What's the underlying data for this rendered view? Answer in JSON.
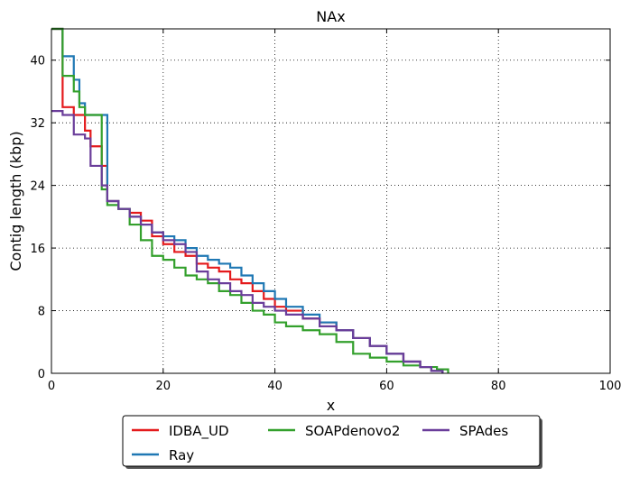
{
  "chart_data": {
    "type": "line",
    "title": "NAx",
    "xlabel": "x",
    "ylabel": "Contig length  (kbp)",
    "xlim": [
      0,
      100
    ],
    "ylim": [
      0,
      44
    ],
    "xticks": [
      0,
      20,
      40,
      60,
      80,
      100
    ],
    "yticks": [
      0,
      8,
      16,
      24,
      32,
      40
    ],
    "grid": true,
    "legend_position": "below-center",
    "series": [
      {
        "name": "IDBA_UD",
        "color": "#e41a1c",
        "step": true,
        "x": [
          0,
          2,
          4,
          6,
          7,
          9,
          10,
          12,
          14,
          16,
          18,
          20,
          22,
          24,
          26,
          28,
          30,
          32,
          34,
          36,
          38,
          40,
          42,
          45,
          48,
          51,
          54,
          57,
          60,
          63,
          66,
          68,
          70
        ],
        "y": [
          44,
          34,
          33,
          31,
          29,
          26.5,
          22,
          21,
          20.5,
          19.5,
          17.5,
          16.5,
          15.5,
          15,
          14,
          13.5,
          13,
          12,
          11.5,
          10.5,
          9.5,
          8.5,
          8,
          7,
          6.5,
          5.5,
          4.5,
          3.5,
          2.5,
          1.5,
          0.8,
          0.3,
          0
        ]
      },
      {
        "name": "Ray",
        "color": "#1f78b4",
        "step": true,
        "x": [
          0,
          2,
          4,
          5,
          6,
          8,
          10,
          12,
          14,
          16,
          18,
          20,
          22,
          24,
          26,
          28,
          30,
          32,
          34,
          36,
          38,
          40,
          42,
          45,
          48,
          51,
          54,
          57,
          60,
          63,
          66,
          68,
          70
        ],
        "y": [
          44,
          40.5,
          37.5,
          34.5,
          33,
          33,
          22,
          21,
          20,
          19,
          18,
          17.5,
          17,
          16,
          15,
          14.5,
          14,
          13.5,
          12.5,
          11.5,
          10.5,
          9.5,
          8.5,
          7.5,
          6.5,
          5.5,
          4.5,
          3.5,
          2.5,
          1.5,
          0.8,
          0.3,
          0
        ]
      },
      {
        "name": "SOAPdenovo2",
        "color": "#33a02c",
        "step": true,
        "x": [
          0,
          2,
          4,
          5,
          6,
          9,
          10,
          12,
          14,
          16,
          18,
          20,
          22,
          24,
          26,
          28,
          30,
          32,
          34,
          36,
          38,
          40,
          42,
          45,
          48,
          51,
          54,
          57,
          60,
          63,
          66,
          69,
          71
        ],
        "y": [
          44,
          38,
          36,
          34,
          33,
          23.5,
          21.5,
          21,
          19,
          17,
          15,
          14.5,
          13.5,
          12.5,
          12,
          11.5,
          10.5,
          10,
          9,
          8,
          7.5,
          6.5,
          6,
          5.5,
          5,
          4,
          2.5,
          2,
          1.5,
          1,
          0.8,
          0.5,
          0
        ]
      },
      {
        "name": "SPAdes",
        "color": "#6a3d9a",
        "step": true,
        "x": [
          0,
          2,
          4,
          6,
          7,
          9,
          10,
          12,
          14,
          16,
          18,
          20,
          22,
          24,
          26,
          28,
          30,
          32,
          34,
          36,
          38,
          40,
          42,
          45,
          48,
          51,
          54,
          57,
          60,
          63,
          66,
          68,
          70
        ],
        "y": [
          33.5,
          33,
          30.5,
          30,
          26.5,
          24,
          22,
          21,
          20,
          19,
          18,
          17,
          16.5,
          15.5,
          13,
          12,
          11.5,
          10.5,
          10,
          9,
          8.5,
          8,
          7.5,
          7,
          6,
          5.5,
          4.5,
          3.5,
          2.5,
          1.5,
          0.8,
          0.3,
          0
        ]
      }
    ]
  }
}
